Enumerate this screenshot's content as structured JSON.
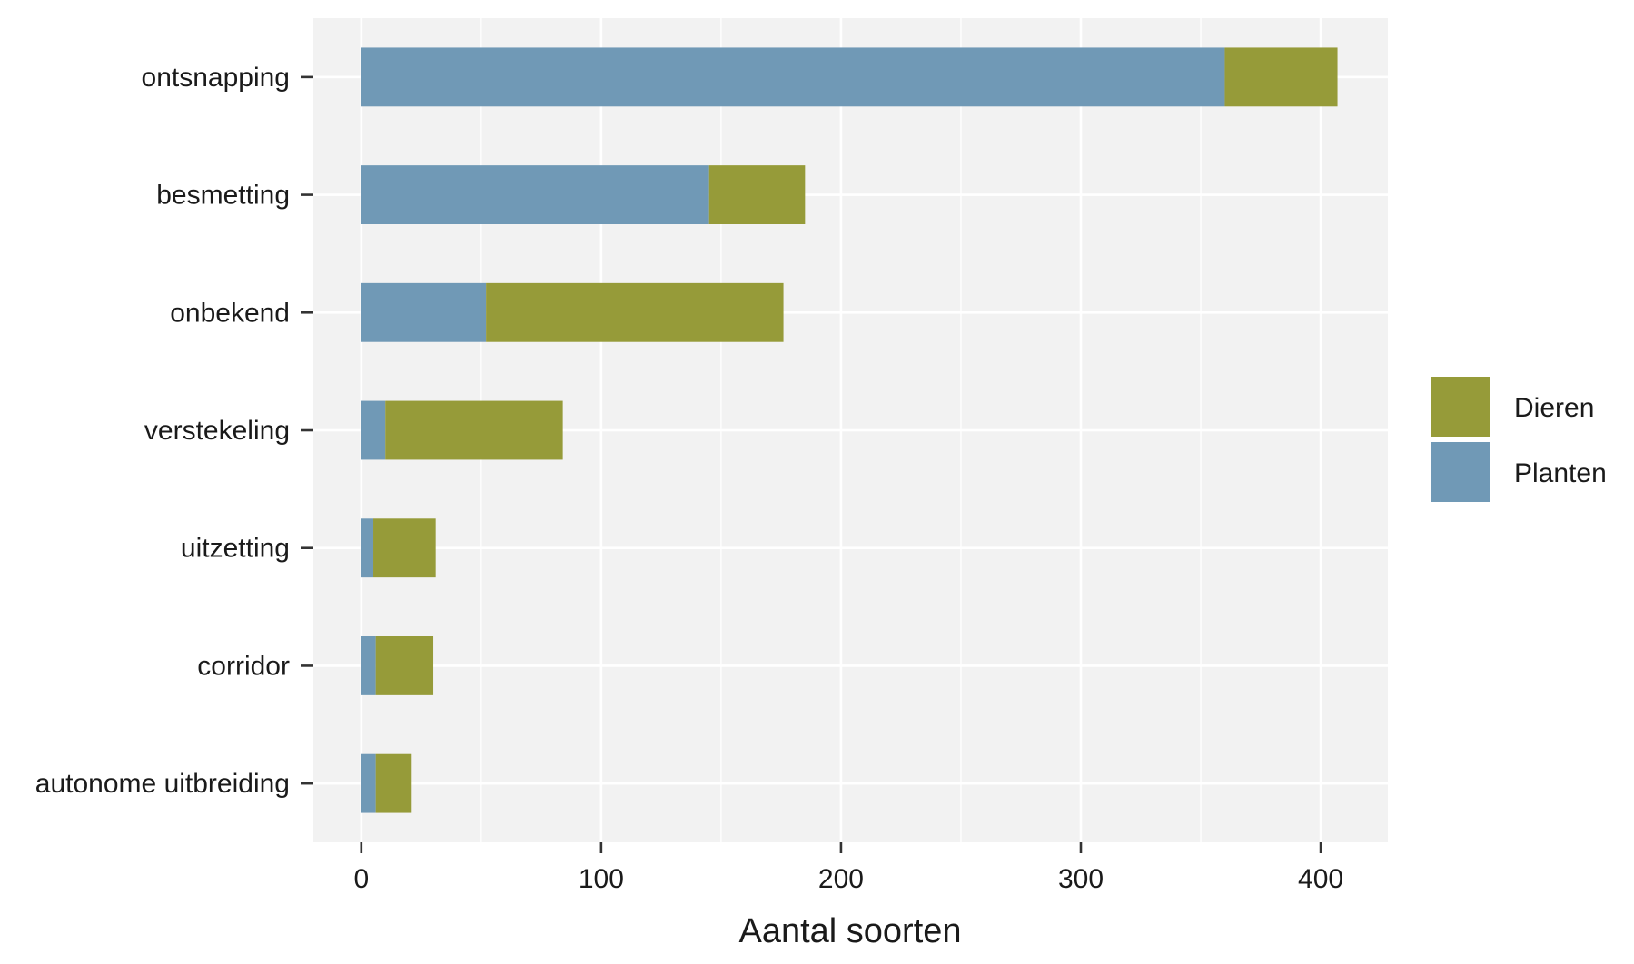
{
  "chart_data": {
    "type": "bar",
    "orientation": "horizontal",
    "stacked": true,
    "categories": [
      "ontsnapping",
      "besmetting",
      "onbekend",
      "verstekeling",
      "uitzetting",
      "corridor",
      "autonome uitbreiding"
    ],
    "series": [
      {
        "name": "Planten",
        "color": "#7099b6",
        "values": [
          360,
          145,
          52,
          10,
          5,
          6,
          6
        ]
      },
      {
        "name": "Dieren",
        "color": "#969b39",
        "values": [
          47,
          40,
          124,
          74,
          26,
          24,
          15
        ]
      }
    ],
    "title": "",
    "xlabel": "Aantal soorten",
    "ylabel": "",
    "xlim": [
      -20,
      428
    ],
    "xticks": [
      0,
      100,
      200,
      300,
      400
    ],
    "grid": true,
    "legend": {
      "position": "right",
      "entries": [
        {
          "name": "Dieren",
          "color": "#969b39"
        },
        {
          "name": "Planten",
          "color": "#7099b6"
        }
      ]
    },
    "panel_background": "#f2f2f2"
  }
}
